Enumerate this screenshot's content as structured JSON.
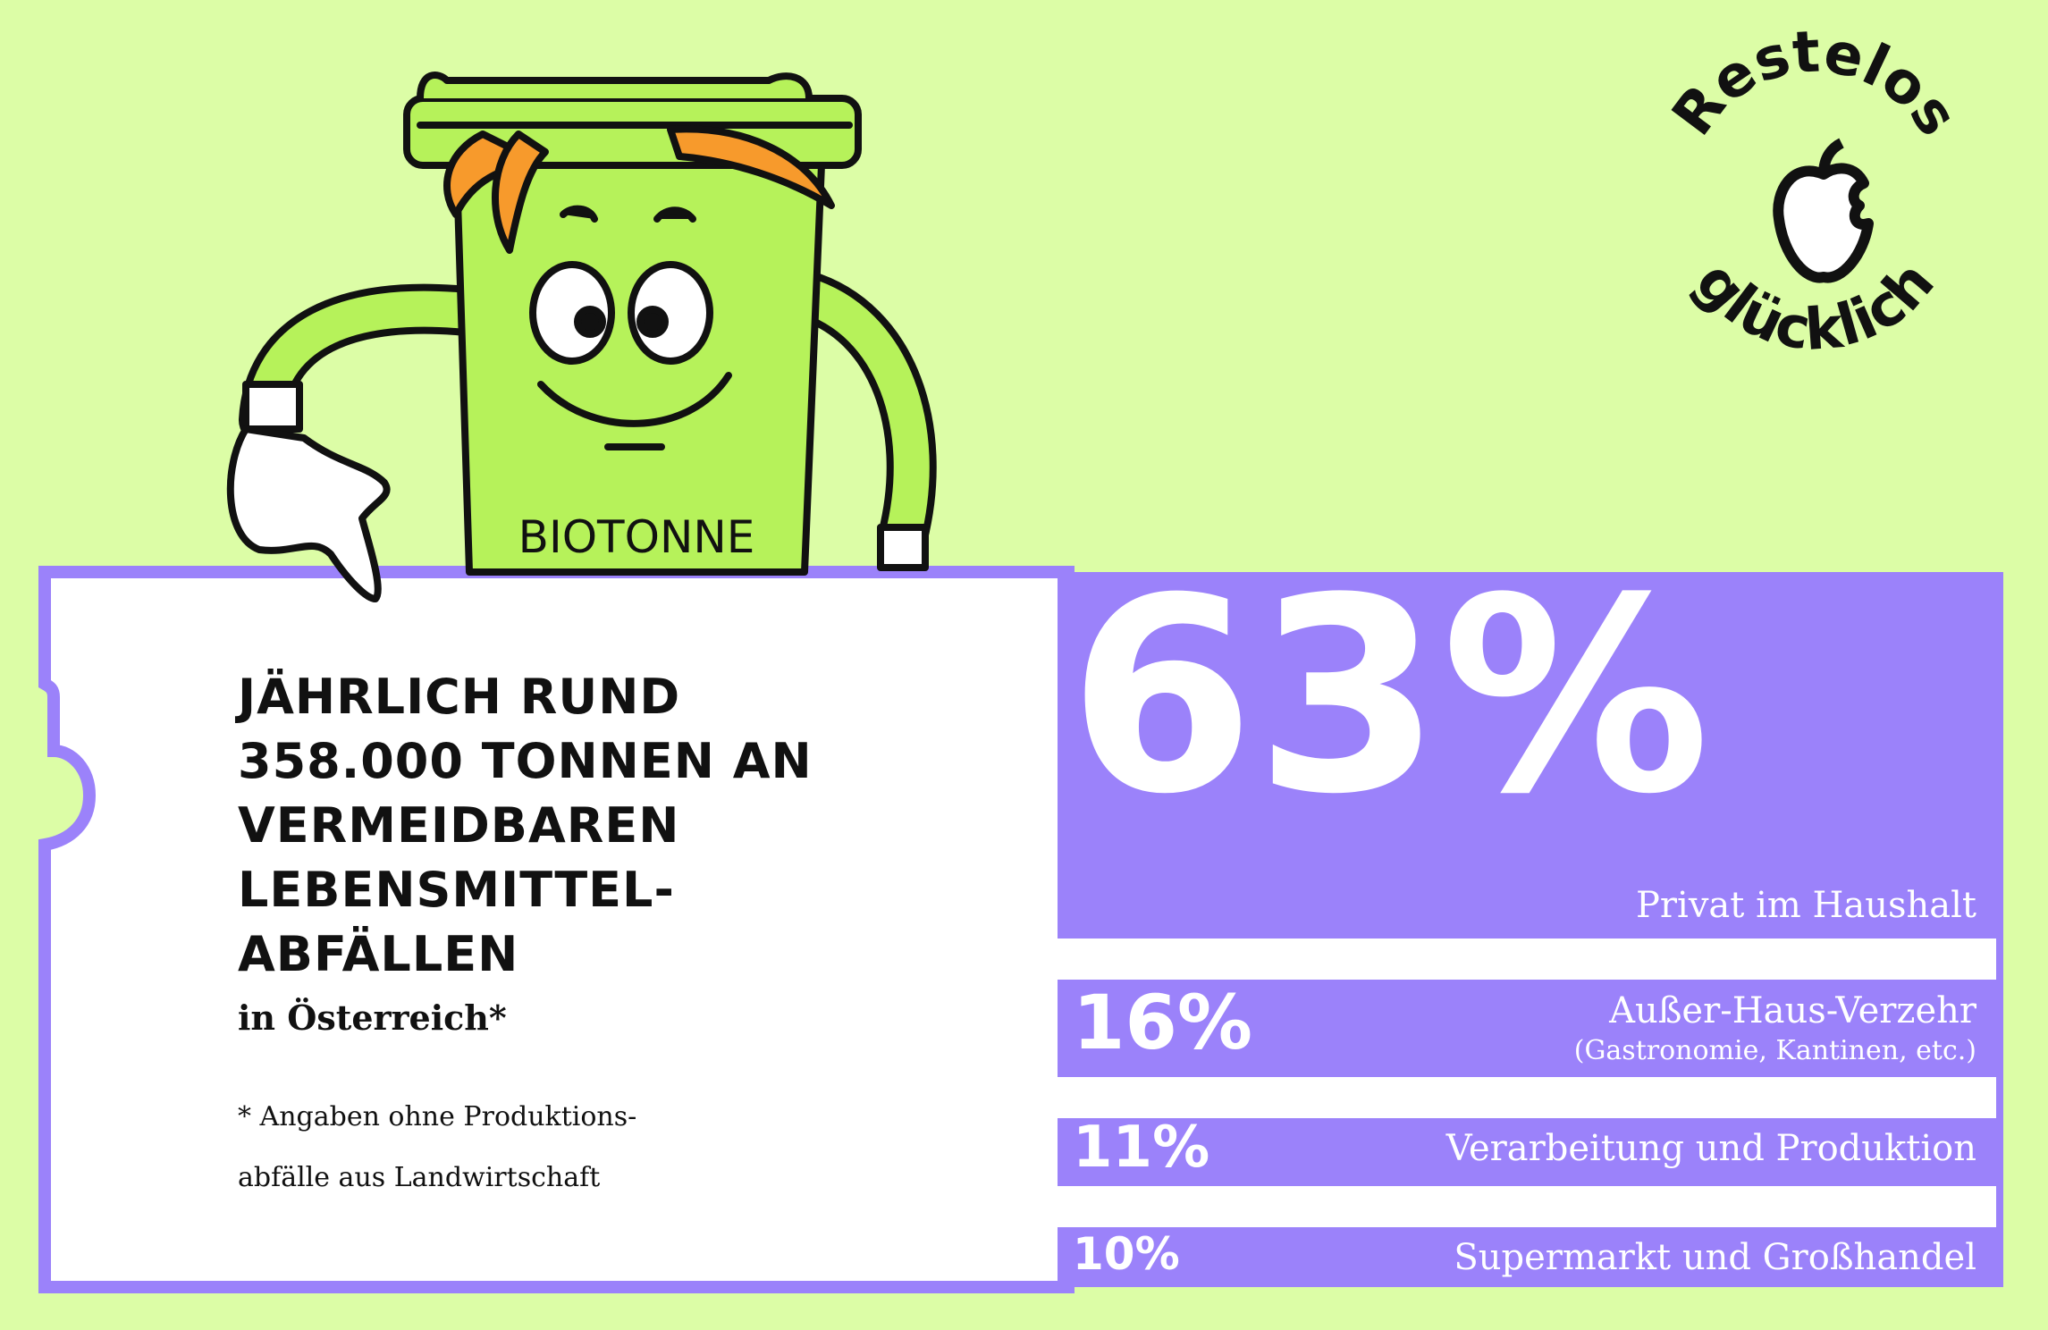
{
  "mascot": {
    "label": "BIOTONNE"
  },
  "badge": {
    "top_text": "Restelos",
    "bottom_text": "glücklich"
  },
  "headline": {
    "lines": [
      "JÄHRLICH RUND",
      "358.000 TONNEN AN",
      "VERMEIDBAREN",
      "LEBENSMITTEL-",
      "ABFÄLLEN"
    ],
    "subline": "in Österreich*",
    "footnote_lines": [
      "* Angaben ohne Produktions-",
      "abfälle aus Landwirtschaft"
    ]
  },
  "colors": {
    "background": "#dcfda6",
    "accent": "#9b82fa",
    "panel": "#ffffff",
    "text": "#111111"
  },
  "chart_data": {
    "type": "bar",
    "title": "JÄHRLICH RUND 358.000 TONNEN AN VERMEIDBAREN LEBENSMITTEL-ABFÄLLEN",
    "unit": "%",
    "categories": [
      "Privat im Haushalt",
      "Außer-Haus-Verzehr",
      "Verarbeitung und Produktion",
      "Supermarkt und Großhandel"
    ],
    "values": [
      63,
      16,
      11,
      10
    ],
    "labels": [
      "63%",
      "16%",
      "11%",
      "10%"
    ],
    "sublabels": [
      "",
      "(Gastronomie, Kantinen, etc.)",
      "",
      ""
    ]
  }
}
